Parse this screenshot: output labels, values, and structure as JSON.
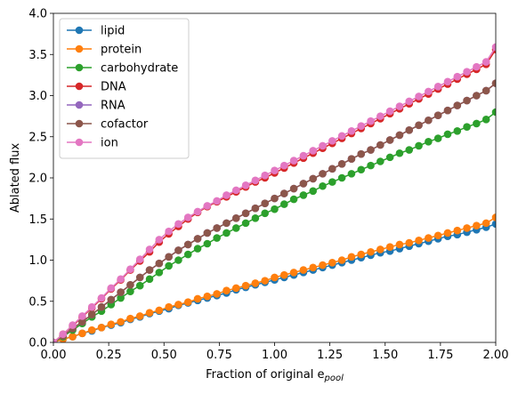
{
  "chart_data": {
    "type": "line",
    "title": "",
    "xlabel_main": "Fraction of original e",
    "xlabel_sub": "pool",
    "ylabel": "Ablated flux",
    "xlim": [
      0,
      2.0
    ],
    "ylim": [
      0,
      4.0
    ],
    "xticks": [
      "0.00",
      "0.25",
      "0.50",
      "0.75",
      "1.00",
      "1.25",
      "1.50",
      "1.75",
      "2.00"
    ],
    "yticks": [
      "0.0",
      "0.5",
      "1.0",
      "1.5",
      "2.0",
      "2.5",
      "3.0",
      "3.5",
      "4.0"
    ],
    "xtick_values": [
      0,
      0.25,
      0.5,
      0.75,
      1.0,
      1.25,
      1.5,
      1.75,
      2.0
    ],
    "ytick_values": [
      0,
      0.5,
      1.0,
      1.5,
      2.0,
      2.5,
      3.0,
      3.5,
      4.0
    ],
    "grid": false,
    "legend_position": "top-left",
    "series": [
      {
        "name": "lipid",
        "color": "#1f77b4",
        "values": [
          0.0,
          0.04,
          0.07,
          0.11,
          0.14,
          0.18,
          0.21,
          0.24,
          0.28,
          0.31,
          0.35,
          0.38,
          0.41,
          0.45,
          0.48,
          0.51,
          0.54,
          0.57,
          0.6,
          0.64,
          0.67,
          0.7,
          0.73,
          0.76,
          0.79,
          0.82,
          0.85,
          0.88,
          0.91,
          0.94,
          0.97,
          1.0,
          1.03,
          1.06,
          1.09,
          1.11,
          1.14,
          1.17,
          1.2,
          1.23,
          1.26,
          1.29,
          1.31,
          1.34,
          1.37,
          1.4,
          1.44
        ]
      },
      {
        "name": "protein",
        "color": "#ff7f0e",
        "values": [
          0.0,
          0.04,
          0.07,
          0.11,
          0.15,
          0.18,
          0.22,
          0.25,
          0.29,
          0.32,
          0.36,
          0.39,
          0.43,
          0.46,
          0.49,
          0.53,
          0.56,
          0.59,
          0.63,
          0.66,
          0.69,
          0.72,
          0.75,
          0.79,
          0.82,
          0.85,
          0.88,
          0.91,
          0.94,
          0.97,
          1.0,
          1.04,
          1.07,
          1.1,
          1.13,
          1.16,
          1.19,
          1.21,
          1.24,
          1.27,
          1.3,
          1.33,
          1.36,
          1.39,
          1.42,
          1.45,
          1.52
        ]
      },
      {
        "name": "carbohydrate",
        "color": "#2ca02c",
        "values": [
          0.0,
          0.07,
          0.15,
          0.23,
          0.31,
          0.38,
          0.46,
          0.54,
          0.62,
          0.69,
          0.77,
          0.85,
          0.93,
          1.0,
          1.07,
          1.14,
          1.2,
          1.27,
          1.33,
          1.39,
          1.45,
          1.51,
          1.57,
          1.62,
          1.68,
          1.74,
          1.79,
          1.84,
          1.9,
          1.95,
          2.0,
          2.05,
          2.1,
          2.15,
          2.2,
          2.25,
          2.3,
          2.34,
          2.39,
          2.44,
          2.48,
          2.53,
          2.57,
          2.62,
          2.66,
          2.71,
          2.8
        ]
      },
      {
        "name": "DNA",
        "color": "#d62728",
        "values": [
          0.0,
          0.1,
          0.2,
          0.31,
          0.42,
          0.53,
          0.65,
          0.76,
          0.88,
          0.99,
          1.1,
          1.22,
          1.32,
          1.41,
          1.5,
          1.58,
          1.65,
          1.71,
          1.77,
          1.83,
          1.89,
          1.95,
          2.0,
          2.06,
          2.12,
          2.18,
          2.24,
          2.3,
          2.36,
          2.42,
          2.48,
          2.54,
          2.6,
          2.66,
          2.72,
          2.78,
          2.84,
          2.9,
          2.96,
          3.02,
          3.08,
          3.14,
          3.2,
          3.26,
          3.32,
          3.38,
          3.56
        ]
      },
      {
        "name": "RNA",
        "color": "#9467bd",
        "values": [
          0.0,
          0.08,
          0.17,
          0.25,
          0.34,
          0.43,
          0.52,
          0.61,
          0.7,
          0.79,
          0.88,
          0.96,
          1.04,
          1.12,
          1.19,
          1.26,
          1.33,
          1.39,
          1.45,
          1.51,
          1.57,
          1.63,
          1.69,
          1.75,
          1.81,
          1.87,
          1.93,
          1.99,
          2.05,
          2.11,
          2.17,
          2.23,
          2.29,
          2.34,
          2.4,
          2.46,
          2.52,
          2.58,
          2.64,
          2.7,
          2.76,
          2.82,
          2.88,
          2.94,
          3.0,
          3.06,
          3.15
        ]
      },
      {
        "name": "cofactor",
        "color": "#8c564b",
        "values": [
          0.0,
          0.08,
          0.17,
          0.25,
          0.34,
          0.43,
          0.52,
          0.61,
          0.7,
          0.79,
          0.88,
          0.96,
          1.04,
          1.12,
          1.19,
          1.26,
          1.33,
          1.39,
          1.45,
          1.51,
          1.57,
          1.63,
          1.69,
          1.75,
          1.81,
          1.87,
          1.93,
          1.99,
          2.05,
          2.11,
          2.17,
          2.23,
          2.29,
          2.34,
          2.4,
          2.46,
          2.52,
          2.58,
          2.64,
          2.7,
          2.76,
          2.82,
          2.88,
          2.94,
          3.0,
          3.06,
          3.15
        ]
      },
      {
        "name": "ion",
        "color": "#e377c2",
        "values": [
          0.0,
          0.1,
          0.21,
          0.32,
          0.43,
          0.54,
          0.66,
          0.77,
          0.89,
          1.01,
          1.13,
          1.25,
          1.35,
          1.44,
          1.52,
          1.59,
          1.66,
          1.72,
          1.79,
          1.85,
          1.91,
          1.97,
          2.03,
          2.09,
          2.15,
          2.21,
          2.27,
          2.33,
          2.39,
          2.45,
          2.51,
          2.57,
          2.63,
          2.69,
          2.75,
          2.81,
          2.87,
          2.93,
          2.99,
          3.05,
          3.11,
          3.17,
          3.23,
          3.29,
          3.35,
          3.41,
          3.59
        ]
      }
    ]
  }
}
